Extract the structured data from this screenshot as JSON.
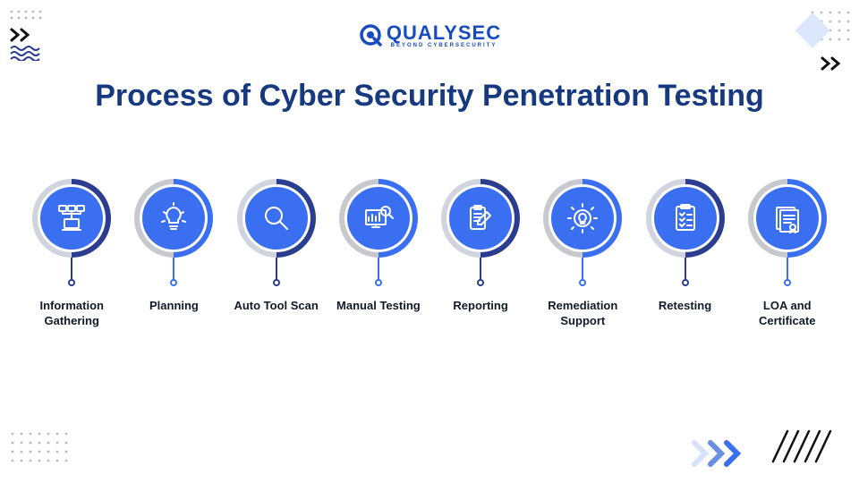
{
  "logo": {
    "text": "QUALYSEC",
    "tagline": "BEYOND CYBERSECURITY"
  },
  "title": "Process of Cyber Security Penetration Testing",
  "colors": {
    "title": "#16397f",
    "logo": "#174cc1",
    "label": "#0d1b2a",
    "bg": "#ffffff"
  },
  "steps": [
    {
      "label": "Information Gathering",
      "icon": "network-laptop",
      "dark_segment": "#2a3d8f",
      "light_segment": "#d0d4de",
      "disc_color": "#3a6ff2"
    },
    {
      "label": "Planning",
      "icon": "lightbulb-gear",
      "dark_segment": "#3a6ff2",
      "light_segment": "#c7c9cf",
      "disc_color": "#3a6ff2"
    },
    {
      "label": "Auto Tool Scan",
      "icon": "magnifier",
      "dark_segment": "#2a3d8f",
      "light_segment": "#d0d4de",
      "disc_color": "#3a6ff2"
    },
    {
      "label": "Manual Testing",
      "icon": "dashboard-search",
      "dark_segment": "#3a6ff2",
      "light_segment": "#c7c9cf",
      "disc_color": "#3a6ff2"
    },
    {
      "label": "Reporting",
      "icon": "clipboard-pencil",
      "dark_segment": "#2a3d8f",
      "light_segment": "#d0d4de",
      "disc_color": "#3a6ff2"
    },
    {
      "label": "Remediation Support",
      "icon": "gear-bulb",
      "dark_segment": "#3a6ff2",
      "light_segment": "#c7c9cf",
      "disc_color": "#3a6ff2"
    },
    {
      "label": "Retesting",
      "icon": "checklist",
      "dark_segment": "#2a3d8f",
      "light_segment": "#d0d4de",
      "disc_color": "#3a6ff2"
    },
    {
      "label": "LOA and Certificate",
      "icon": "certificate",
      "dark_segment": "#3a6ff2",
      "light_segment": "#c7c9cf",
      "disc_color": "#3a6ff2"
    }
  ],
  "decor": {
    "chevron_color": "#111111",
    "br_chevron_colors": [
      "#d6e2f7",
      "#6a8fe0",
      "#3a6ff2"
    ],
    "wave_color": "#2a3d8f",
    "dot_color": "#b7b9c2",
    "scribble_color": "#111111"
  }
}
